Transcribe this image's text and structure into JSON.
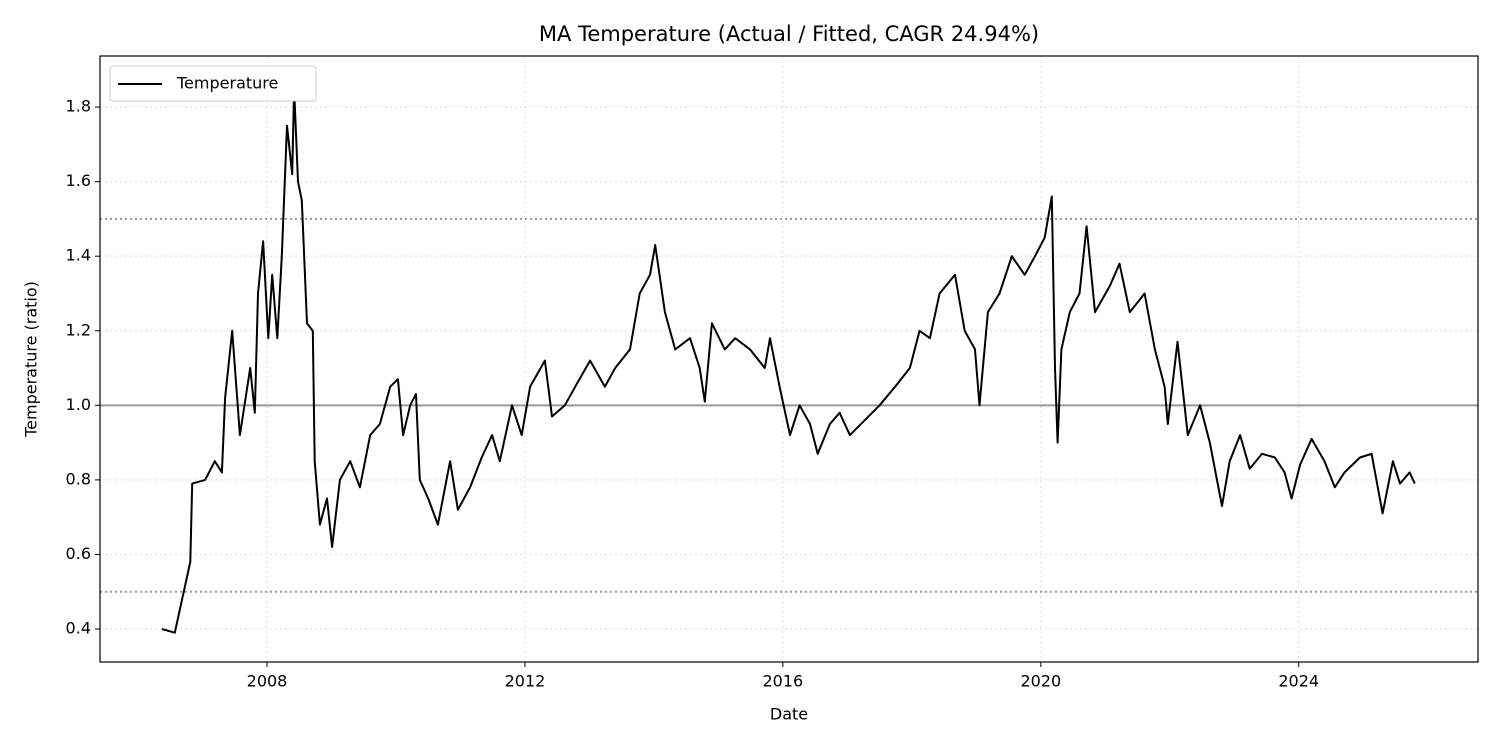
{
  "chart_data": {
    "type": "line",
    "title": "MA Temperature (Actual / Fitted, CAGR 24.94%)",
    "x_label": "Date",
    "y_label": "Temperature (ratio)",
    "xlim": [
      2005.41,
      2026.78
    ],
    "ylim": [
      0.3115,
      1.937
    ],
    "xticks": [
      2008,
      2012,
      2016,
      2020,
      2024
    ],
    "yticks": [
      {
        "value": 0.4,
        "label": "0.4"
      },
      {
        "value": 0.6,
        "label": "0.6"
      },
      {
        "value": 0.8,
        "label": "0.8"
      },
      {
        "value": 1.0,
        "label": "1.0"
      },
      {
        "value": 1.2,
        "label": "1.2"
      },
      {
        "value": 1.4,
        "label": "1.4"
      },
      {
        "value": 1.6,
        "label": "1.6"
      },
      {
        "value": 1.8,
        "label": "1.8"
      }
    ],
    "grid": true,
    "legend": "upper left",
    "hlines": [
      {
        "value": 1.5,
        "style": "dotted",
        "color": "#999999"
      },
      {
        "value": 1.0,
        "style": "solid",
        "color": "#999999"
      },
      {
        "value": 0.5,
        "style": "dotted",
        "color": "#999999"
      }
    ],
    "x": [
      2006.37,
      2006.57,
      2006.81,
      2006.84,
      2007.04,
      2007.19,
      2007.3,
      2007.35,
      2007.46,
      2007.58,
      2007.74,
      2007.81,
      2007.86,
      2007.94,
      2008.02,
      2008.08,
      2008.16,
      2008.23,
      2008.31,
      2008.39,
      2008.42,
      2008.48,
      2008.54,
      2008.62,
      2008.71,
      2008.74,
      2008.82,
      2008.93,
      2009.01,
      2009.13,
      2009.29,
      2009.44,
      2009.6,
      2009.75,
      2009.91,
      2010.03,
      2010.11,
      2010.22,
      2010.31,
      2010.37,
      2010.5,
      2010.65,
      2010.84,
      2010.96,
      2011.15,
      2011.33,
      2011.49,
      2011.61,
      2011.8,
      2011.95,
      2012.08,
      2012.31,
      2012.42,
      2012.62,
      2012.78,
      2013.01,
      2013.24,
      2013.4,
      2013.63,
      2013.78,
      2013.94,
      2014.02,
      2014.17,
      2014.33,
      2014.56,
      2014.71,
      2014.79,
      2014.9,
      2015.1,
      2015.26,
      2015.49,
      2015.72,
      2015.8,
      2015.95,
      2016.11,
      2016.26,
      2016.42,
      2016.54,
      2016.73,
      2016.88,
      2017.04,
      2017.27,
      2017.5,
      2017.74,
      2017.97,
      2018.12,
      2018.28,
      2018.43,
      2018.67,
      2018.82,
      2018.98,
      2019.05,
      2019.18,
      2019.36,
      2019.55,
      2019.75,
      2019.91,
      2020.06,
      2020.17,
      2020.22,
      2020.26,
      2020.32,
      2020.45,
      2020.6,
      2020.71,
      2020.84,
      2021.07,
      2021.22,
      2021.38,
      2021.61,
      2021.77,
      2021.92,
      2021.97,
      2022.12,
      2022.28,
      2022.47,
      2022.62,
      2022.81,
      2022.93,
      2023.09,
      2023.24,
      2023.43,
      2023.63,
      2023.78,
      2023.89,
      2024.02,
      2024.2,
      2024.4,
      2024.56,
      2024.71,
      2024.95,
      2025.13,
      2025.3,
      2025.46,
      2025.57,
      2025.72,
      2025.8
    ],
    "series": [
      {
        "name": "Temperature",
        "color": "#000000",
        "values": [
          0.4,
          0.39,
          0.58,
          0.79,
          0.8,
          0.85,
          0.82,
          1.02,
          1.2,
          0.92,
          1.1,
          0.98,
          1.3,
          1.44,
          1.18,
          1.35,
          1.18,
          1.4,
          1.75,
          1.62,
          1.85,
          1.6,
          1.55,
          1.22,
          1.2,
          0.85,
          0.68,
          0.75,
          0.62,
          0.8,
          0.85,
          0.78,
          0.92,
          0.95,
          1.05,
          1.07,
          0.92,
          1.0,
          1.03,
          0.8,
          0.75,
          0.68,
          0.85,
          0.72,
          0.78,
          0.86,
          0.92,
          0.85,
          1.0,
          0.92,
          1.05,
          1.12,
          0.97,
          1.0,
          1.05,
          1.12,
          1.05,
          1.1,
          1.15,
          1.3,
          1.35,
          1.43,
          1.25,
          1.15,
          1.18,
          1.1,
          1.01,
          1.22,
          1.15,
          1.18,
          1.15,
          1.1,
          1.18,
          1.05,
          0.92,
          1.0,
          0.95,
          0.87,
          0.95,
          0.98,
          0.92,
          0.96,
          1.0,
          1.05,
          1.1,
          1.2,
          1.18,
          1.3,
          1.35,
          1.2,
          1.15,
          1.0,
          1.25,
          1.3,
          1.4,
          1.35,
          1.4,
          1.45,
          1.56,
          1.1,
          0.9,
          1.15,
          1.25,
          1.3,
          1.48,
          1.25,
          1.32,
          1.38,
          1.25,
          1.3,
          1.15,
          1.05,
          0.95,
          1.17,
          0.92,
          1.0,
          0.9,
          0.73,
          0.85,
          0.92,
          0.83,
          0.87,
          0.86,
          0.82,
          0.75,
          0.84,
          0.91,
          0.85,
          0.78,
          0.82,
          0.86,
          0.87,
          0.71,
          0.85,
          0.79,
          0.82,
          0.79
        ]
      }
    ]
  }
}
